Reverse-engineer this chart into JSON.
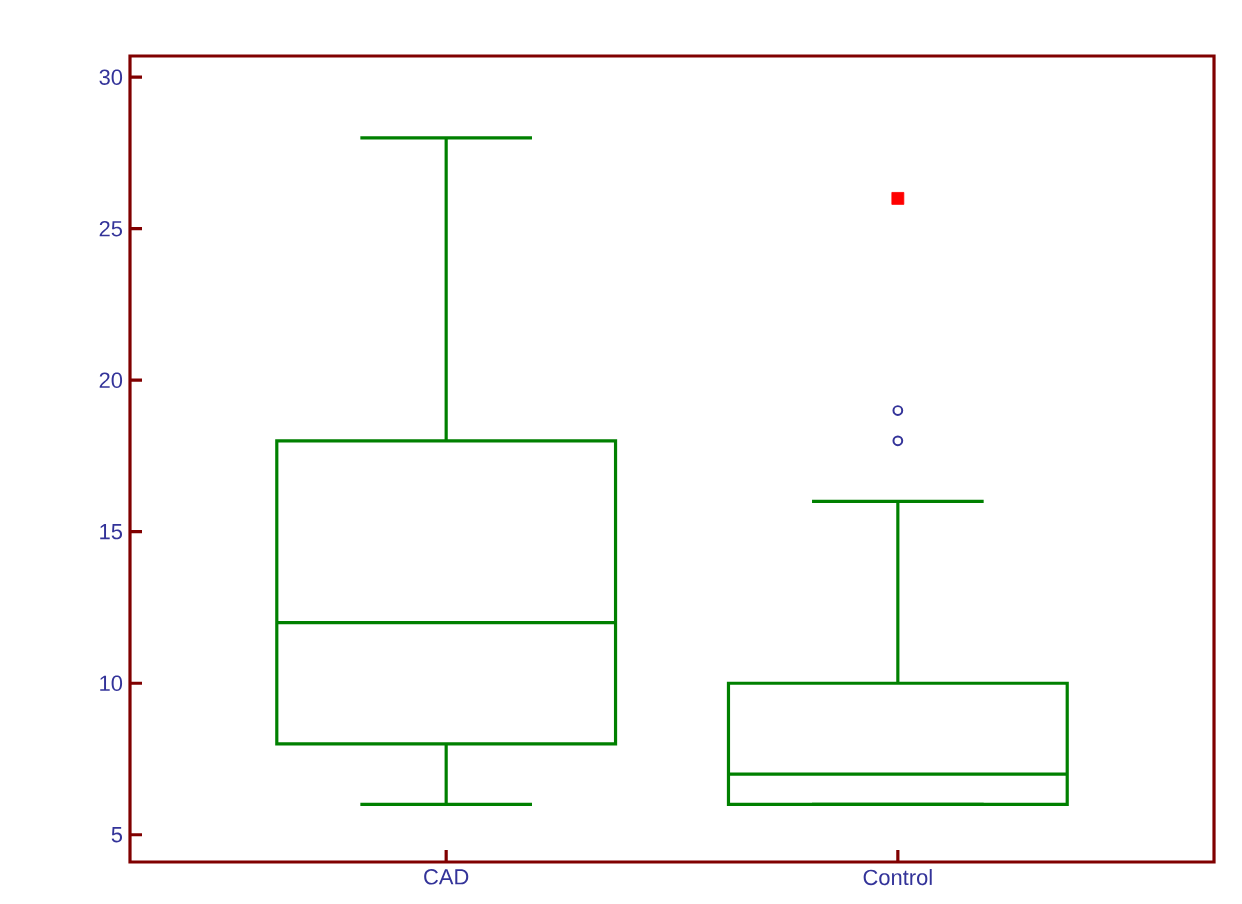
{
  "chart_data": {
    "type": "box",
    "categories": [
      "CAD",
      "Control"
    ],
    "color": "#008000",
    "boxes": [
      {
        "low": 6,
        "q1": 8,
        "median": 12,
        "q3": 18,
        "high": 28
      },
      {
        "low": 6,
        "q1": 6,
        "median": 7,
        "q3": 10,
        "high": 16,
        "outliers": [
          18,
          19,
          26
        ]
      }
    ],
    "ylim": [
      4.1,
      30.7
    ],
    "yticks": [
      5,
      10,
      15,
      20,
      25,
      30
    ],
    "grid": false
  }
}
